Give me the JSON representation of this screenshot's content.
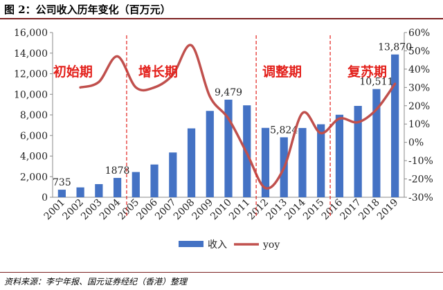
{
  "title": "图 2：公司收入历年变化（百万元）",
  "source": "资料来源：李宁年报、国元证券经纪（香港）整理",
  "chart_data": {
    "type": "bar",
    "categories": [
      "2001",
      "2002",
      "2003",
      "2004",
      "2005",
      "2006",
      "2007",
      "2008",
      "2009",
      "2010",
      "2011",
      "2012",
      "2013",
      "2014",
      "2015",
      "2016",
      "2017",
      "2018",
      "2019"
    ],
    "series": [
      {
        "name": "收入",
        "type": "bar",
        "axis": "left",
        "color": "#4472c4",
        "values": [
          735,
          958,
          1276,
          1878,
          2451,
          3181,
          4349,
          6690,
          8387,
          9479,
          8929,
          6739,
          5824,
          6728,
          7089,
          8015,
          8874,
          10511,
          13870
        ]
      },
      {
        "name": "yoy",
        "type": "line",
        "axis": "right",
        "color": "#c0504d",
        "values": [
          null,
          30,
          33,
          47,
          30,
          30,
          37,
          53,
          25,
          13,
          -6,
          -25,
          -14,
          16,
          5,
          13,
          11,
          18,
          32
        ]
      }
    ],
    "bar_labels": [
      {
        "index": 0,
        "text": "735"
      },
      {
        "index": 3,
        "text": "1878"
      },
      {
        "index": 9,
        "text": "9,479"
      },
      {
        "index": 12,
        "text": "5,824"
      },
      {
        "index": 17,
        "text": "10,511"
      },
      {
        "index": 18,
        "text": "13,870"
      }
    ],
    "y_left": {
      "min": 0,
      "max": 16000,
      "step": 2000,
      "tick_labels": [
        "0",
        "2,000",
        "4,000",
        "6,000",
        "8,000",
        "10,000",
        "12,000",
        "14,000",
        "16,000"
      ]
    },
    "y_right": {
      "min": -30,
      "max": 60,
      "step": 10,
      "tick_labels": [
        "-30%",
        "-20%",
        "-10%",
        "0%",
        "10%",
        "20%",
        "30%",
        "40%",
        "50%",
        "60%"
      ]
    },
    "phases": [
      {
        "label": "初始期",
        "center": 0.6
      },
      {
        "label": "增长期",
        "center": 5.2
      },
      {
        "label": "调整期",
        "center": 11.9
      },
      {
        "label": "复苏期",
        "center": 16.5
      }
    ],
    "phase_dividers": [
      3.5,
      10.5,
      14.5
    ],
    "phase_color": "#e3201b",
    "legend_position": "bottom",
    "xlabel": "",
    "ylabel": ""
  }
}
